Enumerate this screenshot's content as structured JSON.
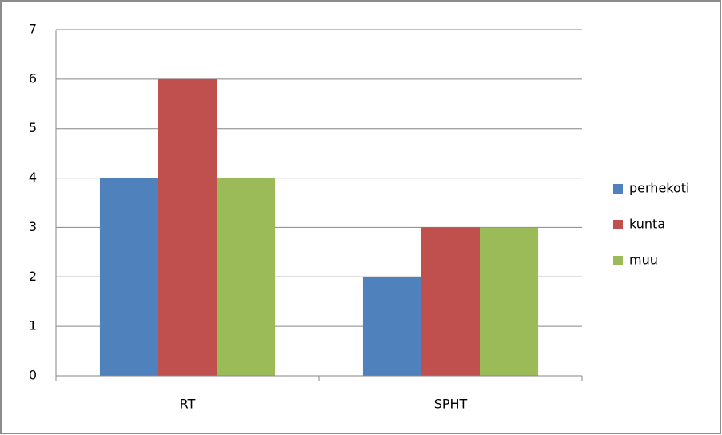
{
  "chart_data": {
    "type": "bar",
    "categories": [
      "RT",
      "SPHT"
    ],
    "series": [
      {
        "name": "perhekoti",
        "color": "#4f81bd",
        "values": [
          4,
          2
        ]
      },
      {
        "name": "kunta",
        "color": "#c0504d",
        "values": [
          6,
          3
        ]
      },
      {
        "name": "muu",
        "color": "#9bbb59",
        "values": [
          4,
          3
        ]
      }
    ],
    "ylim": [
      0,
      7
    ],
    "yticks": [
      0,
      1,
      2,
      3,
      4,
      5,
      6,
      7
    ],
    "grid": true,
    "legend": "right"
  }
}
